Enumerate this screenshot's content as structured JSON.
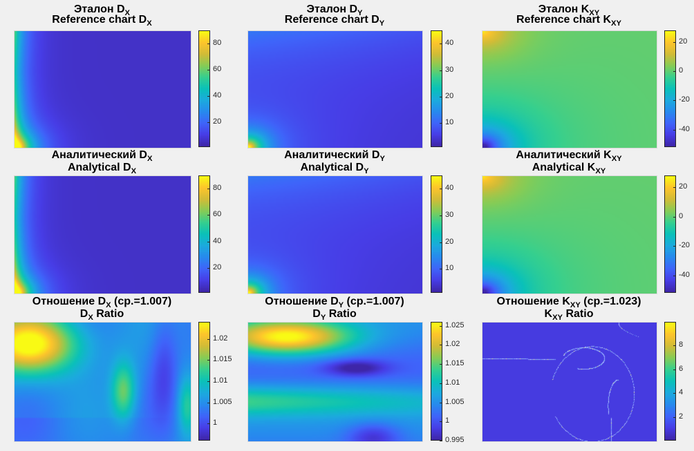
{
  "chart_data": [
    {
      "type": "heatmap",
      "id": "ref-dx",
      "title_ru": "Эталон D",
      "title_ru_sub": "X",
      "title_en": "Reference chart D",
      "title_en_sub": "X",
      "clim": [
        1,
        90
      ],
      "colorbar_ticks": [
        "20",
        "40",
        "60",
        "80"
      ],
      "colorbar_values": [
        20,
        40,
        60,
        80
      ],
      "pattern": "dx"
    },
    {
      "type": "heatmap",
      "id": "ref-dy",
      "title_ru": "Эталон D",
      "title_ru_sub": "Y",
      "title_en": "Reference chart D",
      "title_en_sub": "Y",
      "clim": [
        1,
        45
      ],
      "colorbar_ticks": [
        "10",
        "20",
        "30",
        "40"
      ],
      "colorbar_values": [
        10,
        20,
        30,
        40
      ],
      "pattern": "dy"
    },
    {
      "type": "heatmap",
      "id": "ref-kxy",
      "title_ru": "Эталон K",
      "title_ru_sub": "XY",
      "title_en": "Reference chart  K",
      "title_en_sub": "XY",
      "clim": [
        -52,
        28
      ],
      "colorbar_ticks": [
        "20",
        "0",
        "-20",
        "-40"
      ],
      "colorbar_values": [
        20,
        0,
        -20,
        -40
      ],
      "pattern": "kxy"
    },
    {
      "type": "heatmap",
      "id": "an-dx",
      "title_ru": "Аналитический D",
      "title_ru_sub": "X",
      "title_en": "Analytical  D",
      "title_en_sub": "X",
      "clim": [
        1,
        90
      ],
      "colorbar_ticks": [
        "20",
        "40",
        "60",
        "80"
      ],
      "colorbar_values": [
        20,
        40,
        60,
        80
      ],
      "pattern": "dx"
    },
    {
      "type": "heatmap",
      "id": "an-dy",
      "title_ru": "Аналитический D",
      "title_ru_sub": "Y",
      "title_en": "Analytical  D",
      "title_en_sub": "Y",
      "clim": [
        1,
        45
      ],
      "colorbar_ticks": [
        "10",
        "20",
        "30",
        "40"
      ],
      "colorbar_values": [
        10,
        20,
        30,
        40
      ],
      "pattern": "dy"
    },
    {
      "type": "heatmap",
      "id": "an-kxy",
      "title_ru": "Аналитический K",
      "title_ru_sub": "XY",
      "title_en": "Analytical  K",
      "title_en_sub": "XY",
      "clim": [
        -52,
        28
      ],
      "colorbar_ticks": [
        "20",
        "0",
        "-20",
        "-40"
      ],
      "colorbar_values": [
        20,
        0,
        -20,
        -40
      ],
      "pattern": "kxy"
    },
    {
      "type": "heatmap",
      "id": "ratio-dx",
      "title_ru": "Отношение D",
      "title_ru_sub": "X",
      "title_ru_suffix": " (ср.=1.007)",
      "title_en": "D",
      "title_en_sub": "X",
      "title_en_suffix": " Ratio",
      "clim": [
        0.996,
        1.024
      ],
      "colorbar_ticks": [
        "1.02",
        "1.015",
        "1.01",
        "1.005",
        "1"
      ],
      "colorbar_values": [
        1.02,
        1.015,
        1.01,
        1.005,
        1.0
      ],
      "pattern": "rdx"
    },
    {
      "type": "heatmap",
      "id": "ratio-dy",
      "title_ru": "Отношение D",
      "title_ru_sub": "Y",
      "title_ru_suffix": " (ср.=1.007)",
      "title_en": "D",
      "title_en_sub": "Y",
      "title_en_suffix": " Ratio",
      "clim": [
        0.995,
        1.026
      ],
      "colorbar_ticks": [
        "1.025",
        "1.02",
        "1.015",
        "1.01",
        "1.005",
        "1",
        "0.995"
      ],
      "colorbar_values": [
        1.025,
        1.02,
        1.015,
        1.01,
        1.005,
        1.0,
        0.995
      ],
      "pattern": "rdy"
    },
    {
      "type": "heatmap",
      "id": "ratio-kxy",
      "title_ru": "Отношение K",
      "title_ru_sub": "XY",
      "title_ru_suffix": " (ср.=1.023)",
      "title_en": "K",
      "title_en_sub": "XY",
      "title_en_suffix": " Ratio",
      "clim": [
        0,
        10
      ],
      "colorbar_ticks": [
        "8",
        "6",
        "4",
        "2"
      ],
      "colorbar_values": [
        8,
        6,
        4,
        2
      ],
      "pattern": "rkxy"
    }
  ]
}
